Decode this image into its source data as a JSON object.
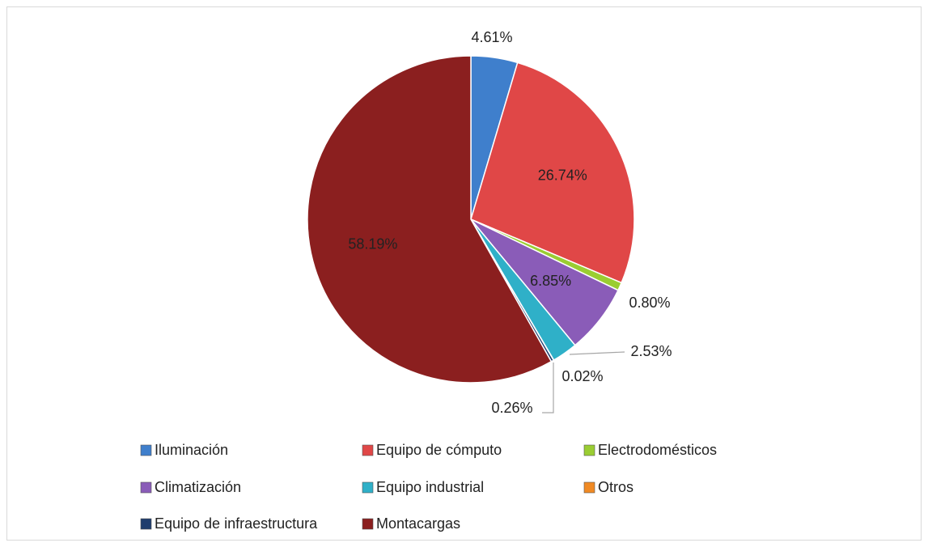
{
  "chart_data": {
    "type": "pie",
    "categories": [
      "Iluminación",
      "Equipo de cómputo",
      "Electrodomésticos",
      "Climatización",
      "Equipo industrial",
      "Otros",
      "Equipo de infraestructura",
      "Montacargas"
    ],
    "values": [
      4.61,
      26.74,
      0.8,
      6.85,
      2.53,
      0.02,
      0.26,
      58.19
    ],
    "value_labels": [
      "4.61%",
      "26.74%",
      "0.80%",
      "6.85%",
      "2.53%",
      "0.02%",
      "0.26%",
      "58.19%"
    ],
    "colors": [
      "#3f7fcc",
      "#e04747",
      "#9acd32",
      "#8a5cb8",
      "#2fb0c8",
      "#f08a24",
      "#1f3d6e",
      "#8b1f1f"
    ],
    "legend": "bottom"
  }
}
